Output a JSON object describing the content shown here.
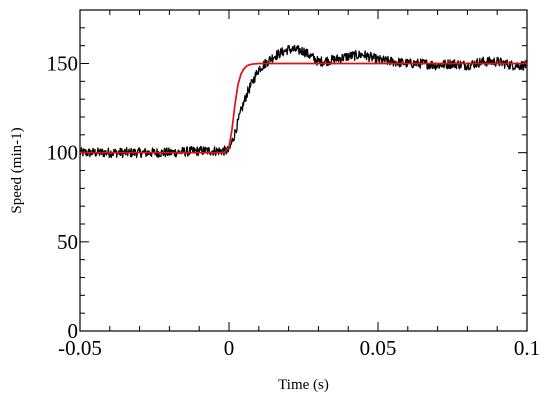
{
  "chart_data": {
    "type": "line",
    "title": "",
    "xlabel": "Time (s)",
    "ylabel": "Speed (min-1)",
    "xlim": [
      -0.05,
      0.1
    ],
    "ylim": [
      0,
      180
    ],
    "x_ticks": [
      -0.05,
      0,
      0.05,
      0.1
    ],
    "x_tick_labels": [
      "-0.05",
      "0",
      "0.05",
      "0.1"
    ],
    "y_ticks": [
      0,
      50,
      100,
      150
    ],
    "y_tick_labels": [
      "0",
      "50",
      "100",
      "150"
    ],
    "grid": false,
    "legend": "none",
    "series": [
      {
        "color": "#000000",
        "x": [
          -0.05,
          -0.04,
          -0.03,
          -0.02,
          -0.01,
          0.0,
          0.002,
          0.004,
          0.006,
          0.008,
          0.01,
          0.015,
          0.02,
          0.025,
          0.03,
          0.035,
          0.04,
          0.045,
          0.05,
          0.055,
          0.06,
          0.065,
          0.07,
          0.075,
          0.08,
          0.085,
          0.09,
          0.095,
          0.1
        ],
        "y": [
          100,
          100,
          100,
          100,
          101,
          101,
          111,
          123,
          133,
          140,
          147,
          154,
          158,
          157,
          151,
          152,
          154,
          155,
          152,
          151,
          150,
          150,
          149,
          150,
          149,
          151,
          151,
          149,
          149
        ]
      },
      {
        "color": "#e01010",
        "x": [
          -0.05,
          -0.002,
          -0.001,
          0.0,
          0.001,
          0.002,
          0.003,
          0.004,
          0.005,
          0.006,
          0.007,
          0.008,
          0.01,
          0.02,
          0.1
        ],
        "y": [
          100,
          100,
          101,
          103,
          113,
          127,
          138,
          144,
          147,
          148.7,
          149.4,
          149.7,
          150,
          150,
          150
        ]
      }
    ]
  }
}
